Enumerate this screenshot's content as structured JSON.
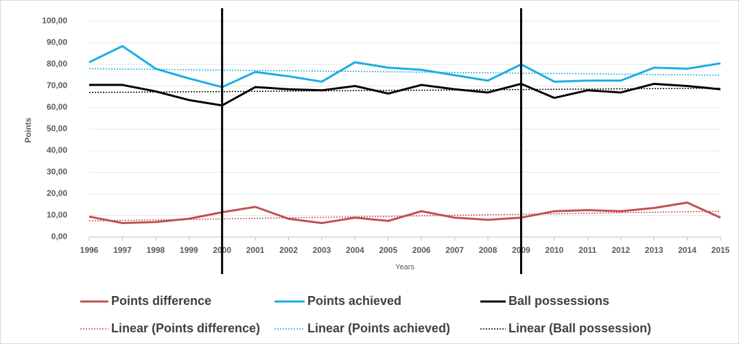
{
  "chart_data": {
    "type": "line",
    "x": [
      1996,
      1997,
      1998,
      1999,
      2000,
      2001,
      2002,
      2003,
      2004,
      2005,
      2006,
      2007,
      2008,
      2009,
      2010,
      2011,
      2012,
      2013,
      2014,
      2015
    ],
    "xlim": [
      1996,
      2015
    ],
    "ylim": [
      0,
      100
    ],
    "yticks": [
      {
        "value": 0,
        "label": "0,00"
      },
      {
        "value": 10,
        "label": "10,00"
      },
      {
        "value": 20,
        "label": "20,00"
      },
      {
        "value": 30,
        "label": "30,00"
      },
      {
        "value": 40,
        "label": "40,00"
      },
      {
        "value": 50,
        "label": "50,00"
      },
      {
        "value": 60,
        "label": "60,00"
      },
      {
        "value": 70,
        "label": "70,00"
      },
      {
        "value": 80,
        "label": "80,00"
      },
      {
        "value": 90,
        "label": "90,00"
      },
      {
        "value": 100,
        "label": "100,00"
      }
    ],
    "ylabel": "Points",
    "xlabel": "Years",
    "grid": true,
    "vertical_lines": [
      2000,
      2009
    ],
    "series": [
      {
        "name": "Points difference",
        "color": "#c0504d",
        "style": "solid",
        "values": [
          9.5,
          6.5,
          7,
          8.5,
          11.5,
          14,
          8.5,
          6.5,
          9,
          7.5,
          12,
          9,
          8,
          9,
          12,
          12.5,
          12,
          13.5,
          16,
          9
        ]
      },
      {
        "name": "Points achieved",
        "color": "#1aade4",
        "style": "solid",
        "values": [
          81,
          88.5,
          78,
          73.5,
          69.5,
          76.5,
          74.5,
          72,
          81,
          78.5,
          77.5,
          75,
          72.5,
          80,
          72,
          72.5,
          72.5,
          78.5,
          78,
          80.5
        ]
      },
      {
        "name": "Ball possessions",
        "color": "#000000",
        "style": "solid",
        "values": [
          70.5,
          70.5,
          67.5,
          63.5,
          61,
          69.5,
          68.5,
          68,
          70,
          66.5,
          70.5,
          68.5,
          67,
          71,
          64.5,
          68,
          67,
          71,
          70,
          68.5
        ]
      },
      {
        "name": "Linear  (Points difference)",
        "color": "#c0504d",
        "style": "dotted",
        "x": [
          1996,
          2015
        ],
        "values": [
          7.5,
          12
        ]
      },
      {
        "name": "Linear  (Points achieved)",
        "color": "#1aade4",
        "style": "dotted",
        "x": [
          1996,
          2015
        ],
        "values": [
          78,
          75
        ]
      },
      {
        "name": "Linear  (Ball possession)",
        "color": "#000000",
        "style": "dotted",
        "x": [
          1996,
          2015
        ],
        "values": [
          67,
          69
        ]
      }
    ]
  }
}
